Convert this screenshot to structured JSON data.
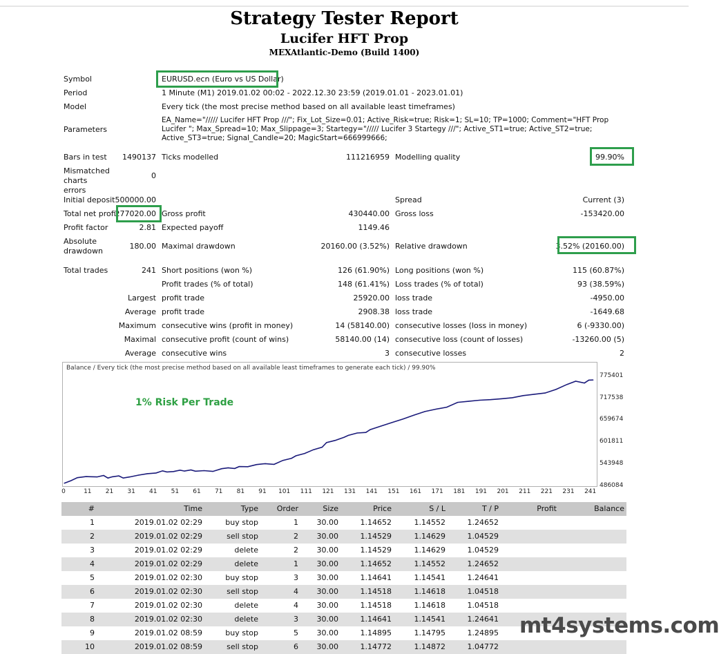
{
  "header": {
    "title": "Strategy Tester Report",
    "ea_name": "Lucifer HFT Prop",
    "server": "MEXAtlantic-Demo (Build 1400)"
  },
  "summary": {
    "symbol_label": "Symbol",
    "symbol_value": "EURUSD.ecn (Euro vs US Dollar)",
    "period_label": "Period",
    "period_value": "1 Minute (M1) 2019.01.02 00:02 - 2022.12.30 23:59 (2019.01.01 - 2023.01.01)",
    "model_label": "Model",
    "model_value": "Every tick (the most precise method based on all available least timeframes)",
    "parameters_label": "Parameters",
    "parameters_value": "EA_Name=\"///// Lucifer HFT Prop ///\"; Fix_Lot_Size=0.01; Active_Risk=true; Risk=1; SL=10; TP=1000; Comment=\"HFT Prop Lucifer \"; Max_Spread=10; Max_Slippage=3; Startegy=\"///// Lucifer 3 Startegy ///\"; Active_ST1=true; Active_ST2=true; Active_ST3=true; Signal_Candle=20; MagicStart=666999666;",
    "bars_label": "Bars in test",
    "bars_value": "1490137",
    "ticks_label": "Ticks modelled",
    "ticks_value": "111216959",
    "quality_label": "Modelling quality",
    "quality_value": "99.90%",
    "mismatch_label": "Mismatched charts errors",
    "mismatch_value": "0",
    "initial_deposit_label": "Initial deposit",
    "initial_deposit_value": "500000.00",
    "spread_label": "Spread",
    "spread_value": "Current (3)",
    "net_profit_label": "Total net profit",
    "net_profit_value": "277020.00",
    "gross_profit_label": "Gross profit",
    "gross_profit_value": "430440.00",
    "gross_loss_label": "Gross loss",
    "gross_loss_value": "-153420.00",
    "profit_factor_label": "Profit factor",
    "profit_factor_value": "2.81",
    "expected_payoff_label": "Expected payoff",
    "expected_payoff_value": "1149.46",
    "abs_dd_label": "Absolute drawdown",
    "abs_dd_value": "180.00",
    "max_dd_label": "Maximal drawdown",
    "max_dd_value": "20160.00 (3.52%)",
    "rel_dd_label": "Relative drawdown",
    "rel_dd_value": "3.52% (20160.00)",
    "total_trades_label": "Total trades",
    "total_trades_value": "241",
    "short_label": "Short positions (won %)",
    "short_value": "126 (61.90%)",
    "long_label": "Long positions (won %)",
    "long_value": "115 (60.87%)",
    "profit_trades_label": "Profit trades (% of total)",
    "profit_trades_value": "148 (61.41%)",
    "loss_trades_label": "Loss trades (% of total)",
    "loss_trades_value": "93 (38.59%)",
    "largest_label": "Largest",
    "largest_profit_label": "profit trade",
    "largest_profit_value": "25920.00",
    "largest_loss_label": "loss trade",
    "largest_loss_value": "-4950.00",
    "average_label": "Average",
    "average_profit_label": "profit trade",
    "average_profit_value": "2908.38",
    "average_loss_label": "loss trade",
    "average_loss_value": "-1649.68",
    "maximum_label": "Maximum",
    "max_wins_label": "consecutive wins (profit in money)",
    "max_wins_value": "14 (58140.00)",
    "max_losses_label": "consecutive losses (loss in money)",
    "max_losses_value": "6 (-9330.00)",
    "maximal_label": "Maximal",
    "maximal_profit_label": "consecutive profit (count of wins)",
    "maximal_profit_value": "58140.00 (14)",
    "maximal_loss_label": "consecutive loss (count of losses)",
    "maximal_loss_value": "-13260.00 (5)",
    "avg2_label": "Average",
    "avg_wins_label": "consecutive wins",
    "avg_wins_value": "3",
    "avg_losses_label": "consecutive losses",
    "avg_losses_value": "2"
  },
  "chart_caption": "Balance / Every tick (the most precise method based on all available least timeframes to generate each tick) / 99.90%",
  "chart_annotation": "1% Risk Per Trade",
  "chart_data": {
    "type": "line",
    "ylim": [
      486084,
      800000
    ],
    "xlim": [
      0,
      243
    ],
    "y_ticks": [
      "775401",
      "717538",
      "659674",
      "601811",
      "543948",
      "486084"
    ],
    "x_ticks": [
      "0",
      "11",
      "21",
      "31",
      "41",
      "51",
      "61",
      "71",
      "81",
      "91",
      "101",
      "111",
      "121",
      "131",
      "141",
      "151",
      "161",
      "171",
      "181",
      "191",
      "201",
      "211",
      "221",
      "231",
      "241"
    ],
    "line_color": "#1a1a7a",
    "series": [
      {
        "x": [
          0,
          3,
          6,
          10,
          15,
          18,
          20,
          22,
          25,
          27,
          30,
          34,
          38,
          42,
          45,
          47,
          50,
          53,
          55,
          58,
          60,
          64,
          68,
          72,
          75,
          78,
          80,
          84,
          88,
          92,
          96,
          100,
          104,
          106,
          110,
          114,
          118,
          120,
          124,
          128,
          130,
          134,
          138,
          140,
          145,
          150,
          155,
          160,
          165,
          170,
          175,
          180,
          185,
          190,
          195,
          200,
          205,
          210,
          215,
          220,
          225,
          230,
          234,
          238,
          240,
          242
        ],
        "y": [
          490500,
          497500,
          506000,
          509000,
          508000,
          512000,
          505000,
          508500,
          511000,
          505000,
          508000,
          513000,
          517000,
          519000,
          525000,
          522000,
          523000,
          527000,
          524500,
          527500,
          524000,
          525500,
          523500,
          531000,
          533500,
          531500,
          537000,
          536500,
          542500,
          545000,
          543000,
          554000,
          560000,
          567000,
          573500,
          584000,
          591000,
          604000,
          610000,
          618500,
          624000,
          630500,
          632000,
          640000,
          650000,
          660000,
          669500,
          680500,
          690500,
          697000,
          702500,
          716000,
          719000,
          722000,
          723500,
          726000,
          729000,
          735000,
          738500,
          742000,
          752000,
          766000,
          775000,
          770000,
          778000,
          778500
        ]
      }
    ]
  },
  "orders": {
    "columns": [
      "#",
      "Time",
      "Type",
      "Order",
      "Size",
      "Price",
      "S / L",
      "T / P",
      "Profit",
      "Balance"
    ],
    "rows": [
      [
        "1",
        "2019.01.02 02:29",
        "buy stop",
        "1",
        "30.00",
        "1.14652",
        "1.14552",
        "1.24652",
        "",
        ""
      ],
      [
        "2",
        "2019.01.02 02:29",
        "sell stop",
        "2",
        "30.00",
        "1.14529",
        "1.14629",
        "1.04529",
        "",
        ""
      ],
      [
        "3",
        "2019.01.02 02:29",
        "delete",
        "2",
        "30.00",
        "1.14529",
        "1.14629",
        "1.04529",
        "",
        ""
      ],
      [
        "4",
        "2019.01.02 02:29",
        "delete",
        "1",
        "30.00",
        "1.14652",
        "1.14552",
        "1.24652",
        "",
        ""
      ],
      [
        "5",
        "2019.01.02 02:30",
        "buy stop",
        "3",
        "30.00",
        "1.14641",
        "1.14541",
        "1.24641",
        "",
        ""
      ],
      [
        "6",
        "2019.01.02 02:30",
        "sell stop",
        "4",
        "30.00",
        "1.14518",
        "1.14618",
        "1.04518",
        "",
        ""
      ],
      [
        "7",
        "2019.01.02 02:30",
        "delete",
        "4",
        "30.00",
        "1.14518",
        "1.14618",
        "1.04518",
        "",
        ""
      ],
      [
        "8",
        "2019.01.02 02:30",
        "delete",
        "3",
        "30.00",
        "1.14641",
        "1.14541",
        "1.24641",
        "",
        ""
      ],
      [
        "9",
        "2019.01.02 08:59",
        "buy stop",
        "5",
        "30.00",
        "1.14895",
        "1.14795",
        "1.24895",
        "",
        ""
      ],
      [
        "10",
        "2019.01.02 08:59",
        "sell stop",
        "6",
        "30.00",
        "1.14772",
        "1.14872",
        "1.04772",
        "",
        ""
      ]
    ]
  },
  "watermark": "mt4systems.com",
  "colors": {
    "highlight_box": "#2e9e4c",
    "annotation": "#2ea043",
    "header_row": "#c8c8c8",
    "alt_row": "#e0e0e0"
  }
}
